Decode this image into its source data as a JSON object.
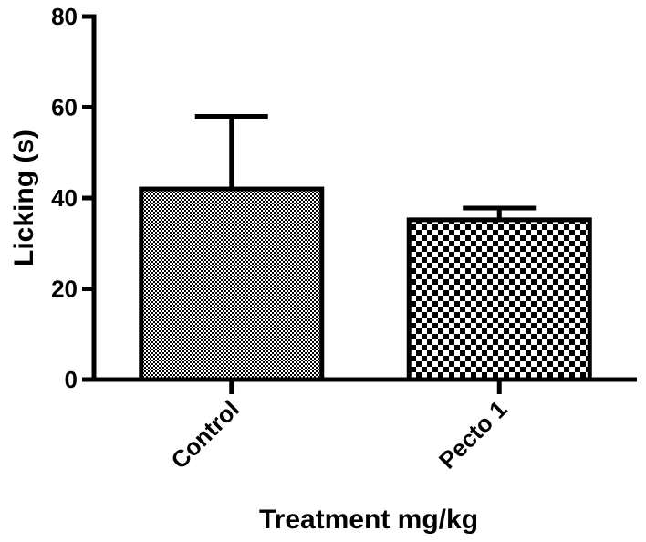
{
  "chart_data": {
    "type": "bar",
    "title": "",
    "xlabel": "Treatment mg/kg",
    "ylabel": "Licking (s)",
    "categories": [
      "Control",
      "Pecto 1"
    ],
    "values": [
      42,
      35.2
    ],
    "error_upper": [
      58,
      37.8
    ],
    "ylim": [
      0,
      80
    ],
    "yticks": [
      "0",
      "20",
      "40",
      "60",
      "80"
    ],
    "grid": false,
    "legend": "none",
    "patterns": [
      "fine-checker",
      "coarse-checker"
    ],
    "colors": {
      "axis": "#000000",
      "bar_outline": "#000000",
      "pattern_dark": "#000000",
      "pattern_light": "#ffffff"
    }
  }
}
